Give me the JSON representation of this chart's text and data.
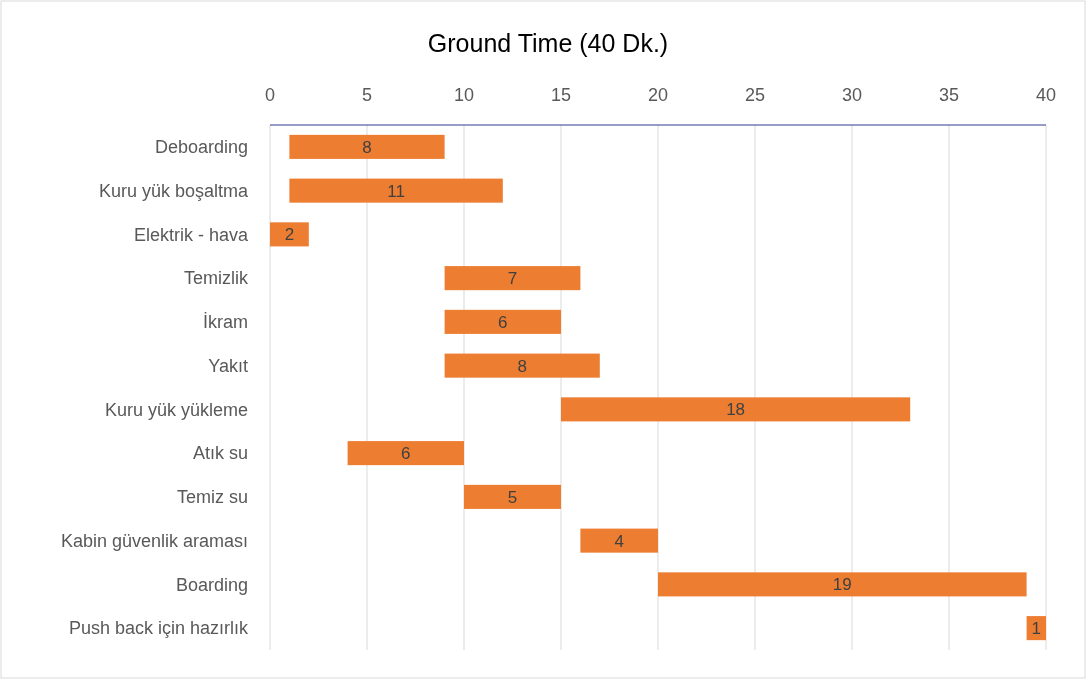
{
  "chart_data": {
    "type": "bar",
    "orientation": "horizontal",
    "title": "Ground Time (40 Dk.)",
    "categories": [
      "Deboarding",
      "Kuru yük boşaltma",
      "Elektrik - hava",
      "Temizlik",
      "İkram",
      "Yakıt",
      "Kuru yük yükleme",
      "Atık su",
      "Temiz su",
      "Kabin güvenlik araması",
      "Boarding",
      "Push back için hazırlık"
    ],
    "base": [
      1,
      1,
      0,
      9,
      9,
      9,
      15,
      4,
      10,
      16,
      20,
      39
    ],
    "values": [
      8,
      11,
      2,
      7,
      6,
      8,
      18,
      6,
      5,
      4,
      19,
      1
    ],
    "color": "#ed7d31",
    "xlim": [
      0,
      40
    ],
    "xticks": [
      0,
      5,
      10,
      15,
      20,
      25,
      30,
      35,
      40
    ],
    "grid": "x",
    "data_labels": true
  }
}
